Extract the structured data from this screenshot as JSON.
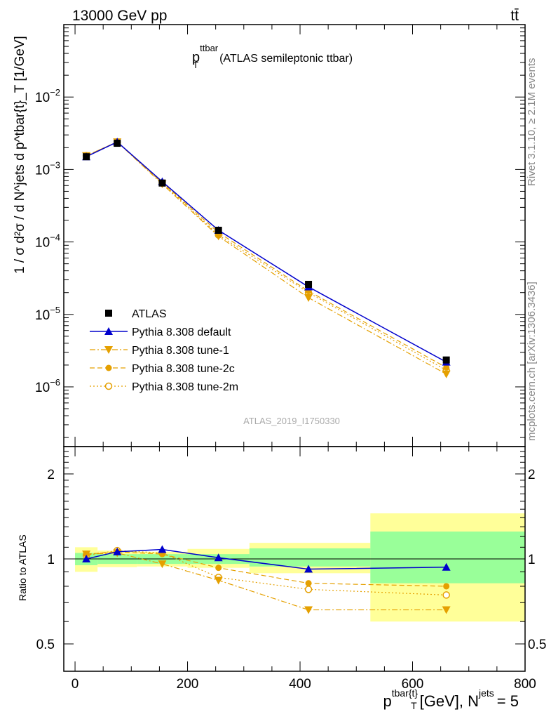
{
  "header": {
    "left": "13000 GeV pp",
    "right": "tt̄"
  },
  "side_labels": {
    "rivet": "Rivet 3.1.10, ≥ 2.1M events",
    "mcplots": "mcplots.cern.ch [arXiv:1306.3436]"
  },
  "colors": {
    "atlas": "#000000",
    "default": "#0000cc",
    "tune": "#e5a000",
    "band_inner": "#99ff99",
    "band_outer": "#ffff99"
  },
  "chart_data": [
    {
      "type": "line",
      "panel": "main",
      "title_main": "p",
      "title_sup": "ttbar",
      "title_sub": "T",
      "title_rest": "(ATLAS semileptonic ttbar)",
      "watermark": "ATLAS_2019_I1750330",
      "ylabel": "1 / σ d²σ / d N^jets d p^tbar{t}_T [1/GeV]",
      "yscale": "log",
      "ylim": [
        1.5e-07,
        0.1
      ],
      "xlim": [
        -20,
        800
      ],
      "x": [
        20,
        75,
        155,
        255,
        415,
        660
      ],
      "bins": [
        [
          0,
          40
        ],
        [
          40,
          110
        ],
        [
          110,
          200
        ],
        [
          200,
          310
        ],
        [
          310,
          525
        ],
        [
          525,
          800
        ]
      ],
      "yticks": [
        {
          "value": 0.01,
          "base": "10",
          "exp": "−2"
        },
        {
          "value": 0.001,
          "base": "10",
          "exp": "−3"
        },
        {
          "value": 0.0001,
          "base": "10",
          "exp": "−4"
        },
        {
          "value": 1e-05,
          "base": "10",
          "exp": "−5"
        },
        {
          "value": 1e-06,
          "base": "10",
          "exp": "−6"
        }
      ],
      "legend_position": "lower-left",
      "series": [
        {
          "name": "ATLAS",
          "style": "data",
          "marker": "square",
          "values": [
            0.0015,
            0.0023,
            0.00065,
            0.000145,
            2.6e-05,
            2.35e-06
          ]
        },
        {
          "name": "Pythia 8.308 default",
          "style": "solid",
          "marker": "triangle-up",
          "values": [
            0.0015,
            0.0024,
            0.00068,
            0.000145,
            2.4e-05,
            2.2e-06
          ]
        },
        {
          "name": "Pythia 8.308 tune-1",
          "style": "dashdot",
          "marker": "triangle-down",
          "values": [
            0.00155,
            0.0024,
            0.00063,
            0.00012,
            1.7e-05,
            1.5e-06
          ]
        },
        {
          "name": "Pythia 8.308 tune-2c",
          "style": "dashed",
          "marker": "circle",
          "values": [
            0.00155,
            0.0024,
            0.00066,
            0.000135,
            2.1e-05,
            1.85e-06
          ]
        },
        {
          "name": "Pythia 8.308 tune-2m",
          "style": "dotted",
          "marker": "circle-open",
          "values": [
            0.00155,
            0.0024,
            0.00065,
            0.000125,
            2e-05,
            1.7e-06
          ]
        }
      ]
    },
    {
      "type": "line",
      "panel": "ratio",
      "ylabel": "Ratio to ATLAS",
      "xlabel_main": "p",
      "xlabel_sup": "tbar{t}",
      "xlabel_sub": "T",
      "xlabel_rest": "[GeV], N",
      "xlabel_sup2": "jets",
      "xlabel_tail": "= 5",
      "yscale": "log",
      "ylim": [
        0.4,
        2.5
      ],
      "xlim": [
        -20,
        800
      ],
      "xticks": [
        0,
        200,
        400,
        600,
        800
      ],
      "yticks": [
        0.5,
        1,
        2
      ],
      "bands": [
        {
          "x0": 0,
          "x1": 40,
          "inner": [
            0.95,
            1.05
          ],
          "outer": [
            0.9,
            1.1
          ]
        },
        {
          "x0": 40,
          "x1": 110,
          "inner": [
            0.96,
            1.04
          ],
          "outer": [
            0.935,
            1.07
          ]
        },
        {
          "x0": 110,
          "x1": 200,
          "inner": [
            0.96,
            1.04
          ],
          "outer": [
            0.94,
            1.06
          ]
        },
        {
          "x0": 200,
          "x1": 310,
          "inner": [
            0.96,
            1.04
          ],
          "outer": [
            0.93,
            1.085
          ]
        },
        {
          "x0": 310,
          "x1": 525,
          "inner": [
            0.94,
            1.09
          ],
          "outer": [
            0.89,
            1.14
          ]
        },
        {
          "x0": 525,
          "x1": 800,
          "inner": [
            0.82,
            1.25
          ],
          "outer": [
            0.6,
            1.45
          ]
        }
      ],
      "series": [
        {
          "name": "Pythia 8.308 default",
          "style": "solid",
          "marker": "triangle-up",
          "values": [
            1.0,
            1.06,
            1.08,
            1.01,
            0.92,
            0.935
          ]
        },
        {
          "name": "Pythia 8.308 tune-1",
          "style": "dashdot",
          "marker": "triangle-down",
          "values": [
            1.04,
            1.05,
            0.96,
            0.84,
            0.66,
            0.66
          ]
        },
        {
          "name": "Pythia 8.308 tune-2c",
          "style": "dashed",
          "marker": "circle",
          "values": [
            1.04,
            1.06,
            1.04,
            0.93,
            0.82,
            0.8
          ]
        },
        {
          "name": "Pythia 8.308 tune-2m",
          "style": "dotted",
          "marker": "circle-open",
          "values": [
            1.03,
            1.07,
            1.05,
            0.86,
            0.78,
            0.745
          ]
        }
      ]
    }
  ]
}
